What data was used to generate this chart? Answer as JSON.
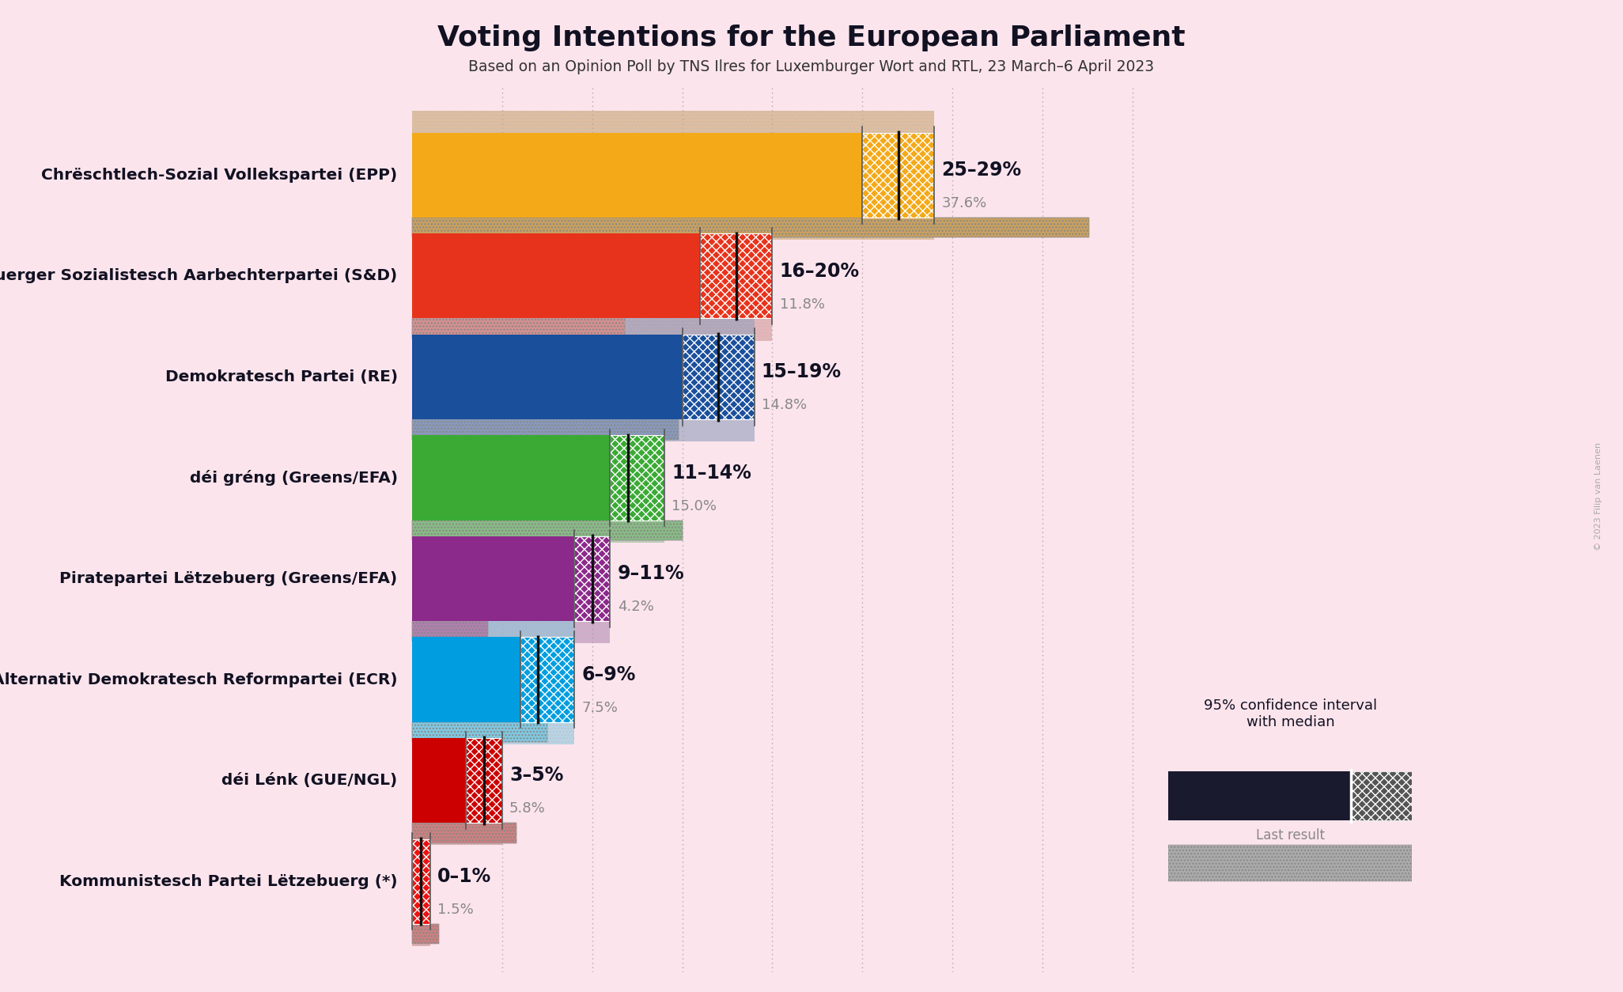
{
  "title": "Voting Intentions for the European Parliament",
  "subtitle": "Based on an Opinion Poll by TNS Ilres for Luxemburger Wort and RTL, 23 March–6 April 2023",
  "copyright": "© 2023 Filip van Laenen",
  "background_color": "#fce4ec",
  "parties": [
    {
      "name": "Chrëschtlech-Sozial Vollekspartei (EPP)",
      "low": 25,
      "high": 29,
      "median": 27,
      "last_result": 37.6,
      "color": "#F4A918",
      "last_color": "#c8a060",
      "label": "25–29%",
      "last_label": "37.6%"
    },
    {
      "name": "Lëtzebuerger Sozialistesch Aarbechterpartei (S&D)",
      "low": 16,
      "high": 20,
      "median": 18,
      "last_result": 11.8,
      "color": "#E8331C",
      "last_color": "#d49090",
      "label": "16–20%",
      "last_label": "11.8%"
    },
    {
      "name": "Demokratesch Partei (RE)",
      "low": 15,
      "high": 19,
      "median": 17,
      "last_result": 14.8,
      "color": "#1A4F9C",
      "last_color": "#8899bb",
      "label": "15–19%",
      "last_label": "14.8%"
    },
    {
      "name": "déi gréng (Greens/EFA)",
      "low": 11,
      "high": 14,
      "median": 12,
      "last_result": 15.0,
      "color": "#3aaa35",
      "last_color": "#88bb85",
      "label": "11–14%",
      "last_label": "15.0%"
    },
    {
      "name": "Piratepartei Lëtzebuererg (Greens/EFA)",
      "low": 9,
      "high": 11,
      "median": 10,
      "last_result": 4.2,
      "color": "#8B2A8B",
      "last_color": "#b080b0",
      "label": "9–11%",
      "last_label": "4.2%"
    },
    {
      "name": "Alternativ Demokratesch Reformpartei (ECR)",
      "low": 6,
      "high": 9,
      "median": 7,
      "last_result": 7.5,
      "color": "#009EE0",
      "last_color": "#80c8e0",
      "label": "6–9%",
      "last_label": "7.5%"
    },
    {
      "name": "déi Lénk (GUE/NGL)",
      "low": 3,
      "high": 5,
      "median": 4,
      "last_result": 5.8,
      "color": "#CC0000",
      "last_color": "#cc8080",
      "label": "3–5%",
      "last_label": "5.8%"
    },
    {
      "name": "Kommunistesch Partei Lëtzebuererg (*)",
      "low": 0,
      "high": 1,
      "median": 0.5,
      "last_result": 1.5,
      "color": "#EE1111",
      "last_color": "#cc8080",
      "label": "0–1%",
      "last_label": "1.5%"
    }
  ],
  "x_max": 42,
  "grid_lines": [
    5,
    10,
    15,
    20,
    25,
    30,
    35,
    40
  ]
}
